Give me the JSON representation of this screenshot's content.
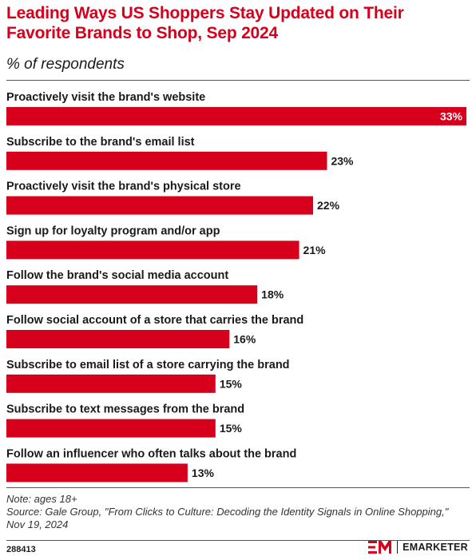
{
  "header": {
    "title": "Leading Ways US Shoppers Stay Updated on Their Favorite Brands to Shop, Sep 2024",
    "subtitle": "% of respondents"
  },
  "chart_data": {
    "type": "bar",
    "orientation": "horizontal",
    "title": "Leading Ways US Shoppers Stay Updated on Their Favorite Brands to Shop, Sep 2024",
    "subtitle": "% of respondents",
    "unit": "%",
    "xlim": [
      0,
      33
    ],
    "grid": false,
    "bar_color": "#d6001c",
    "categories": [
      "Proactively visit the brand's website",
      "Subscribe to the brand's email list",
      "Proactively visit the brand's physical store",
      "Sign up for loyalty program and/or app",
      "Follow the brand's social media account",
      "Follow social account of a store that carries the brand",
      "Subscribe to email list of a store carrying the brand",
      "Subscribe to text messages from the brand",
      "Follow an influencer who often talks about the brand"
    ],
    "values": [
      33,
      23,
      22,
      21,
      18,
      16,
      15,
      15,
      13
    ],
    "value_labels": [
      "33%",
      "23%",
      "22%",
      "21%",
      "18%",
      "16%",
      "15%",
      "15%",
      "13%"
    ]
  },
  "footer": {
    "note": "Note: ages 18+",
    "source": "Source: Gale Group, \"From Clicks to Culture: Decoding the Identity Signals in Online Shopping,\" Nov 19, 2024",
    "chart_id": "288413",
    "brand": "EMARKETER"
  },
  "colors": {
    "accent": "#d6001c",
    "text": "#1a1a1a"
  }
}
